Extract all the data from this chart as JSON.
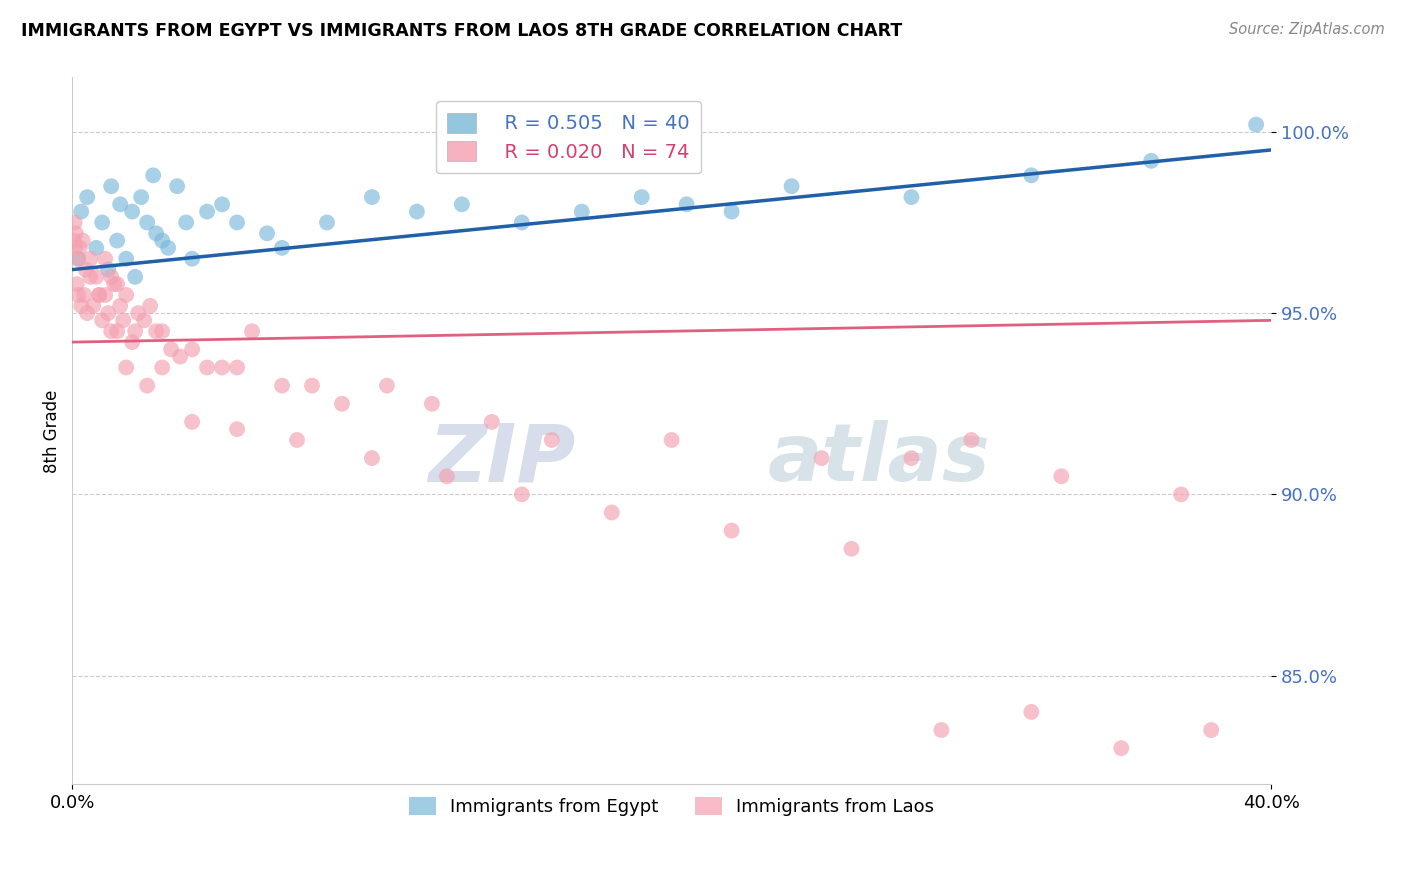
{
  "title": "IMMIGRANTS FROM EGYPT VS IMMIGRANTS FROM LAOS 8TH GRADE CORRELATION CHART",
  "source": "Source: ZipAtlas.com",
  "ylabel": "8th Grade",
  "legend_egypt": "Immigrants from Egypt",
  "legend_laos": "Immigrants from Laos",
  "legend_r_egypt": "R = 0.505",
  "legend_n_egypt": "N = 40",
  "legend_r_laos": "R = 0.020",
  "legend_n_laos": "N = 74",
  "egypt_color": "#7ab8d9",
  "laos_color": "#f4a0b0",
  "egypt_line_color": "#2060a8",
  "laos_line_color": "#e06080",
  "background_color": "#ffffff",
  "watermark_zip": "ZIP",
  "watermark_atlas": "atlas",
  "egypt_x": [
    0.2,
    0.3,
    0.5,
    0.8,
    1.0,
    1.2,
    1.3,
    1.5,
    1.6,
    1.8,
    2.0,
    2.1,
    2.3,
    2.5,
    2.7,
    2.8,
    3.0,
    3.2,
    3.5,
    3.8,
    4.0,
    4.5,
    5.0,
    5.5,
    6.5,
    7.0,
    8.5,
    10.0,
    11.5,
    13.0,
    15.0,
    17.0,
    19.0,
    20.5,
    22.0,
    24.0,
    28.0,
    32.0,
    36.0,
    39.5
  ],
  "egypt_y": [
    96.5,
    97.8,
    98.2,
    96.8,
    97.5,
    96.2,
    98.5,
    97.0,
    98.0,
    96.5,
    97.8,
    96.0,
    98.2,
    97.5,
    98.8,
    97.2,
    97.0,
    96.8,
    98.5,
    97.5,
    96.5,
    97.8,
    98.0,
    97.5,
    97.2,
    96.8,
    97.5,
    98.2,
    97.8,
    98.0,
    97.5,
    97.8,
    98.2,
    98.0,
    97.8,
    98.5,
    98.2,
    98.8,
    99.2,
    100.2
  ],
  "laos_x": [
    0.05,
    0.08,
    0.1,
    0.12,
    0.15,
    0.18,
    0.2,
    0.25,
    0.3,
    0.35,
    0.4,
    0.45,
    0.5,
    0.6,
    0.7,
    0.8,
    0.9,
    1.0,
    1.1,
    1.2,
    1.3,
    1.4,
    1.5,
    1.6,
    1.7,
    1.8,
    2.0,
    2.2,
    2.4,
    2.6,
    2.8,
    3.0,
    3.3,
    3.6,
    4.0,
    4.5,
    5.0,
    5.5,
    6.0,
    7.0,
    8.0,
    9.0,
    10.5,
    12.0,
    14.0,
    16.0,
    20.0,
    25.0,
    28.0,
    30.0,
    33.0,
    37.0,
    1.1,
    1.3,
    1.5,
    1.8,
    2.1,
    2.5,
    3.0,
    4.0,
    5.5,
    7.5,
    10.0,
    12.5,
    15.0,
    18.0,
    22.0,
    26.0,
    29.0,
    32.0,
    35.0,
    38.0,
    0.6,
    0.9
  ],
  "laos_y": [
    97.0,
    97.5,
    96.8,
    97.2,
    95.8,
    96.5,
    95.5,
    96.8,
    95.2,
    97.0,
    95.5,
    96.2,
    95.0,
    96.5,
    95.2,
    96.0,
    95.5,
    94.8,
    95.5,
    95.0,
    96.0,
    95.8,
    94.5,
    95.2,
    94.8,
    95.5,
    94.2,
    95.0,
    94.8,
    95.2,
    94.5,
    94.5,
    94.0,
    93.8,
    94.0,
    93.5,
    93.5,
    93.5,
    94.5,
    93.0,
    93.0,
    92.5,
    93.0,
    92.5,
    92.0,
    91.5,
    91.5,
    91.0,
    91.0,
    91.5,
    90.5,
    90.0,
    96.5,
    94.5,
    95.8,
    93.5,
    94.5,
    93.0,
    93.5,
    92.0,
    91.8,
    91.5,
    91.0,
    90.5,
    90.0,
    89.5,
    89.0,
    88.5,
    83.5,
    84.0,
    83.0,
    83.5,
    96.0,
    95.5
  ],
  "xlim_min": 0,
  "xlim_max": 40,
  "ylim_min": 82,
  "ylim_max": 101.5,
  "yticks": [
    85.0,
    90.0,
    95.0,
    100.0
  ],
  "egypt_line_x0": 0,
  "egypt_line_x1": 40,
  "egypt_line_y0": 96.2,
  "egypt_line_y1": 99.5,
  "laos_line_x0": 0,
  "laos_line_x1": 40,
  "laos_line_y0": 94.2,
  "laos_line_y1": 94.8
}
